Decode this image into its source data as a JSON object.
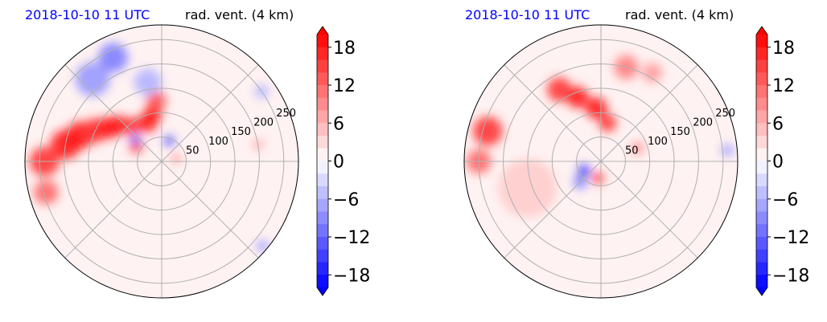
{
  "chart_data": [
    {
      "type": "polar-contour",
      "title_left": "2018-10-10 11 UTC",
      "title_right": "rad. vent. (4 km)",
      "radial_ticks": [
        50,
        100,
        150,
        200,
        250
      ],
      "rmax": 280,
      "colorbar": {
        "ticks": [
          18,
          12,
          6,
          0,
          -6,
          -12,
          -18
        ],
        "tick_labels": [
          "18",
          "12",
          "6",
          "0",
          "−6",
          "−12",
          "−18"
        ],
        "vmin": -20,
        "vmax": 20,
        "step": 2,
        "extend": "both"
      },
      "blobs": [
        {
          "r": 200,
          "th": 170,
          "v": 18,
          "s": 30
        },
        {
          "r": 175,
          "th": 162,
          "v": 18,
          "s": 28
        },
        {
          "r": 150,
          "th": 155,
          "v": 16,
          "s": 25
        },
        {
          "r": 130,
          "th": 148,
          "v": 18,
          "s": 22
        },
        {
          "r": 115,
          "th": 140,
          "v": 18,
          "s": 20
        },
        {
          "r": 95,
          "th": 130,
          "v": 16,
          "s": 18
        },
        {
          "r": 85,
          "th": 110,
          "v": 18,
          "s": 20
        },
        {
          "r": 100,
          "th": 100,
          "v": 18,
          "s": 18
        },
        {
          "r": 125,
          "th": 95,
          "v": 14,
          "s": 20
        },
        {
          "r": 240,
          "th": 180,
          "v": 16,
          "s": 30
        },
        {
          "r": 245,
          "th": 195,
          "v": 12,
          "s": 25
        },
        {
          "r": 60,
          "th": 150,
          "v": 14,
          "s": 14
        },
        {
          "r": 220,
          "th": 130,
          "v": -8,
          "s": 35
        },
        {
          "r": 235,
          "th": 115,
          "v": -10,
          "s": 30
        },
        {
          "r": 165,
          "th": 100,
          "v": -6,
          "s": 28
        },
        {
          "r": 70,
          "th": 140,
          "v": -14,
          "s": 10
        },
        {
          "r": 45,
          "th": 70,
          "v": -16,
          "s": 10
        },
        {
          "r": 30,
          "th": 10,
          "v": 12,
          "s": 8
        },
        {
          "r": 200,
          "th": 10,
          "v": 8,
          "s": 10
        },
        {
          "r": 250,
          "th": 35,
          "v": -6,
          "s": 14
        },
        {
          "r": 270,
          "th": -40,
          "v": -8,
          "s": 12
        }
      ]
    },
    {
      "type": "polar-contour",
      "title_left": "2018-10-10 11 UTC",
      "title_right": "rad. vent. (4 km)",
      "radial_ticks": [
        50,
        100,
        150,
        200,
        250
      ],
      "rmax": 280,
      "colorbar": {
        "ticks": [
          18,
          12,
          6,
          0,
          -6,
          -12,
          -18
        ],
        "tick_labels": [
          "18",
          "12",
          "6",
          "0",
          "−6",
          "−12",
          "−18"
        ],
        "vmin": -20,
        "vmax": 20,
        "step": 2,
        "extend": "both"
      },
      "blobs": [
        {
          "r": 110,
          "th": 95,
          "v": 18,
          "s": 22
        },
        {
          "r": 140,
          "th": 110,
          "v": 18,
          "s": 22
        },
        {
          "r": 170,
          "th": 120,
          "v": 16,
          "s": 25
        },
        {
          "r": 80,
          "th": 80,
          "v": 16,
          "s": 18
        },
        {
          "r": 240,
          "th": 165,
          "v": 16,
          "s": 30
        },
        {
          "r": 250,
          "th": 180,
          "v": 12,
          "s": 25
        },
        {
          "r": 200,
          "th": 75,
          "v": 10,
          "s": 25
        },
        {
          "r": 40,
          "th": 210,
          "v": -18,
          "s": 12
        },
        {
          "r": 35,
          "th": 260,
          "v": 16,
          "s": 12
        },
        {
          "r": 60,
          "th": 225,
          "v": -10,
          "s": 14
        },
        {
          "r": 80,
          "th": 20,
          "v": 10,
          "s": 12
        },
        {
          "r": 210,
          "th": 60,
          "v": 8,
          "s": 20
        },
        {
          "r": 260,
          "th": 5,
          "v": -8,
          "s": 12
        },
        {
          "r": 160,
          "th": 200,
          "v": 4,
          "s": 60
        }
      ]
    }
  ]
}
